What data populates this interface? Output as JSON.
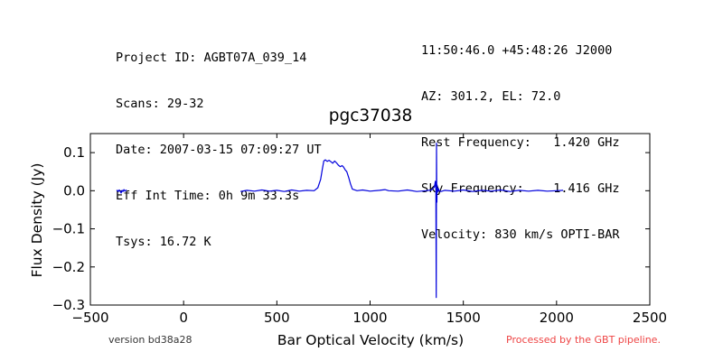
{
  "header": {
    "left_lines": [
      "Project ID: AGBT07A_039_14",
      "Scans: 29-32",
      "Date: 2007-03-15 07:09:27 UT",
      "Eff Int Time: 0h 9m 33.3s",
      "Tsys: 16.72 K"
    ],
    "right_lines": [
      "11:50:46.0 +45:48:26 J2000",
      "AZ: 301.2, EL: 72.0",
      "Rest Frequency:   1.420 GHz",
      "Sky Frequency:    1.416 GHz",
      "Velocity: 830 km/s OPTI-BAR"
    ]
  },
  "footer": {
    "version": "version bd38a28",
    "pipeline": "Processed by the GBT pipeline."
  },
  "colors": {
    "line": "#0000dd",
    "pipeline_text": "#ee4444"
  },
  "chart_data": {
    "type": "line",
    "title": "pgc37038",
    "xlabel": "Bar Optical Velocity (km/s)",
    "ylabel": "Flux Density (Jy)",
    "xlim": [
      -500,
      2500
    ],
    "ylim": [
      -0.3,
      0.15
    ],
    "xticks": [
      -500,
      0,
      500,
      1000,
      1500,
      2000,
      2500
    ],
    "xtick_labels": [
      "−500",
      "0",
      "500",
      "1000",
      "1500",
      "2000",
      "2500"
    ],
    "yticks": [
      0.1,
      0.0,
      -0.1,
      -0.2,
      -0.3
    ],
    "ytick_labels": [
      "0.1",
      "0.0",
      "−0.1",
      "−0.2",
      "−0.3"
    ],
    "grid": false,
    "series": [
      {
        "segments": [
          {
            "x": [
              -360,
              -355,
              -350,
              -345,
              -340,
              -335,
              -330,
              -325,
              -320,
              -315,
              -310,
              -305
            ],
            "y": [
              0.0,
              0.001,
              -0.002,
              0.002,
              -0.001,
              -0.006,
              0.001,
              -0.002,
              0.003,
              -0.001,
              0.001,
              0.002
            ]
          },
          {
            "x": [
              305,
              340,
              380,
              420,
              460,
              500,
              540,
              580,
              620,
              660,
              700,
              720,
              735,
              745,
              752,
              760,
              770,
              780,
              790,
              800,
              810,
              820,
              830,
              840,
              850,
              858,
              866,
              875,
              885,
              895,
              905,
              930,
              960,
              1000,
              1050,
              1080,
              1100,
              1150,
              1200,
              1250,
              1300,
              1330,
              1345,
              1350,
              1353,
              1355,
              1356,
              1357,
              1358,
              1359,
              1360,
              1362,
              1364,
              1366,
              1370,
              1380,
              1400,
              1450,
              1500,
              1550,
              1600,
              1650,
              1700,
              1750,
              1800,
              1850,
              1900,
              1950,
              2000,
              2035
            ],
            "y": [
              -0.002,
              0.001,
              -0.001,
              0.002,
              -0.001,
              0.001,
              -0.002,
              0.002,
              -0.001,
              0.001,
              0.0,
              0.008,
              0.03,
              0.06,
              0.078,
              0.081,
              0.077,
              0.08,
              0.076,
              0.072,
              0.078,
              0.073,
              0.067,
              0.063,
              0.066,
              0.062,
              0.055,
              0.05,
              0.035,
              0.018,
              0.004,
              0.0,
              0.002,
              -0.001,
              0.001,
              0.003,
              0.0,
              -0.001,
              0.002,
              -0.002,
              0.0,
              0.002,
              0.01,
              0.025,
              0.005,
              -0.28,
              0.125,
              0.02,
              -0.03,
              0.015,
              -0.005,
              0.004,
              -0.002,
              0.006,
              0.0,
              -0.002,
              0.001,
              -0.001,
              0.002,
              -0.002,
              0.001,
              -0.001,
              0.002,
              -0.002,
              0.001,
              -0.001,
              0.001,
              -0.001,
              0.0,
              0.001
            ]
          }
        ]
      }
    ]
  }
}
